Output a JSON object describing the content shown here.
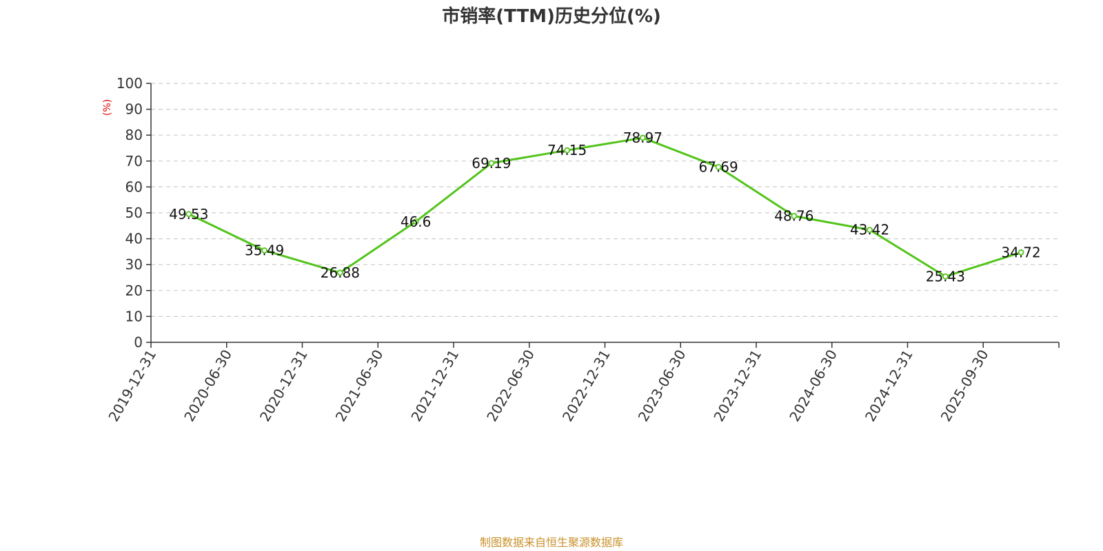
{
  "chart_data": {
    "type": "line",
    "title": "市销率(TTM)历史分位(%)",
    "ylabel": "(%)",
    "xlabel": "",
    "ylim": [
      0,
      100
    ],
    "yticks": [
      0,
      10,
      20,
      30,
      40,
      50,
      60,
      70,
      80,
      90,
      100
    ],
    "grid": true,
    "x_tick_labels": [
      "2019-12-31",
      "2020-06-30",
      "2020-12-31",
      "2021-06-30",
      "2021-12-31",
      "2022-06-30",
      "2022-12-31",
      "2023-06-30",
      "2023-12-31",
      "2024-06-30",
      "2024-12-31",
      "2025-09-30"
    ],
    "series": [
      {
        "color": "#52c41a",
        "values": [
          49.53,
          35.49,
          26.88,
          46.6,
          69.19,
          74.15,
          78.97,
          67.69,
          48.76,
          43.42,
          25.43,
          34.72
        ]
      }
    ],
    "source": "制图数据来自恒生聚源数据库"
  }
}
